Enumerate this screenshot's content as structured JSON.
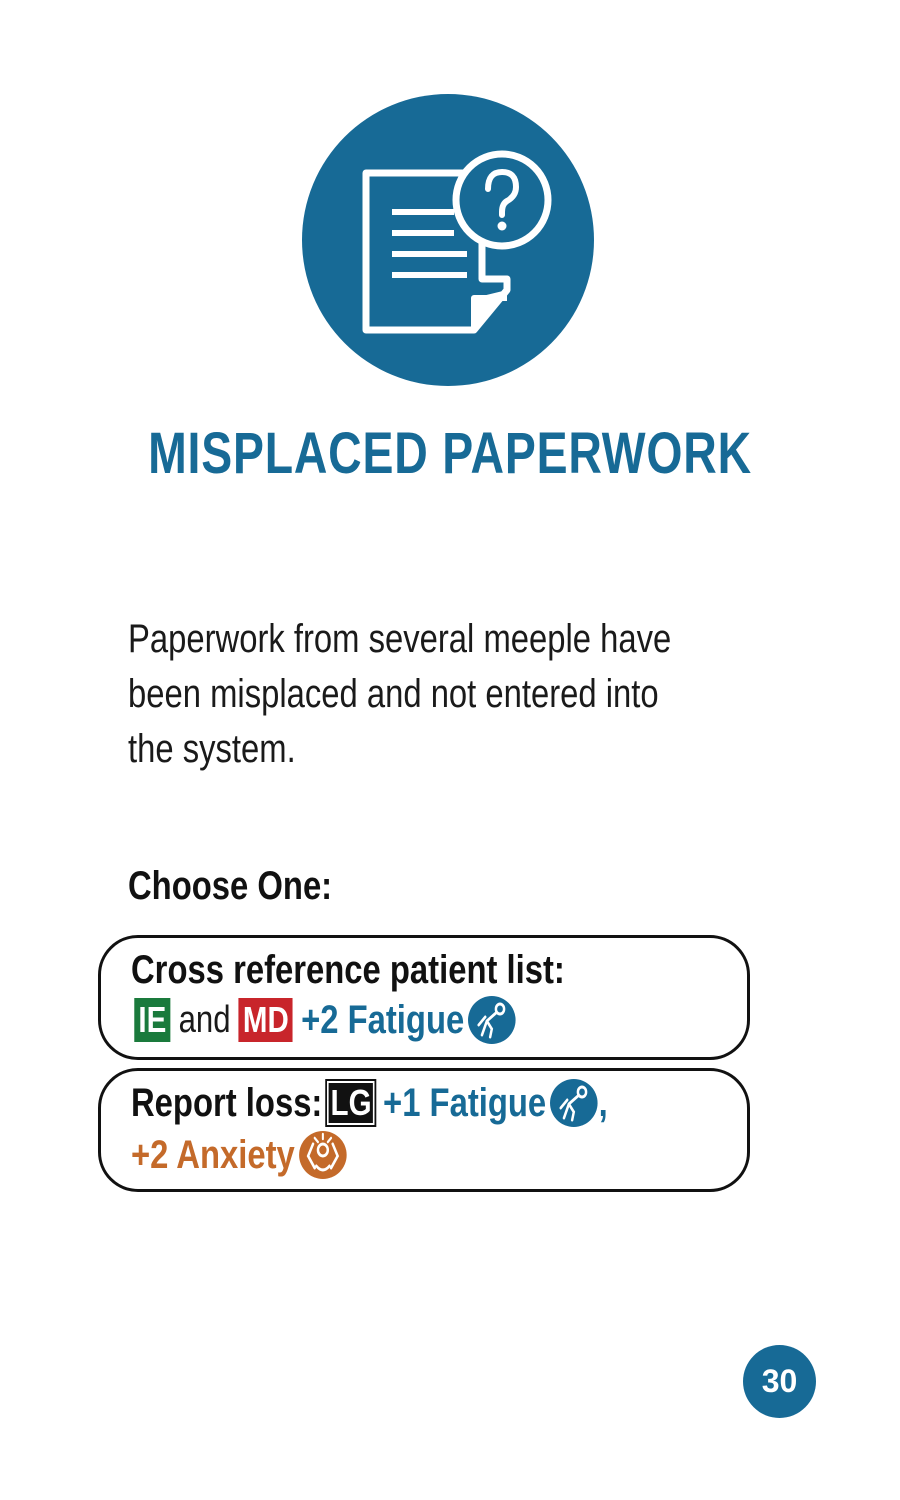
{
  "card": {
    "title": "MISPLACED PAPERWORK",
    "description": "Paperwork from several meeple have been misplaced and not entered into the system.",
    "choose_label": "Choose One:",
    "page_number": "30",
    "icon": "document-question-icon",
    "colors": {
      "primary_blue": "#176a96",
      "anxiety_orange": "#c46a2a",
      "ie_green": "#1a7a3c",
      "md_red": "#c8252b"
    }
  },
  "options": [
    {
      "label": "Cross reference patient list:",
      "badge1": "IE",
      "connector": "and",
      "badge2": "MD",
      "effect": "+2 Fatigue",
      "effect_icon": "fatigue-icon"
    },
    {
      "label": "Report loss:",
      "badge": "LG",
      "effect1": "+1 Fatigue",
      "effect1_icon": "fatigue-icon",
      "separator": ",",
      "effect2": "+2 Anxiety",
      "effect2_icon": "anxiety-icon"
    }
  ]
}
